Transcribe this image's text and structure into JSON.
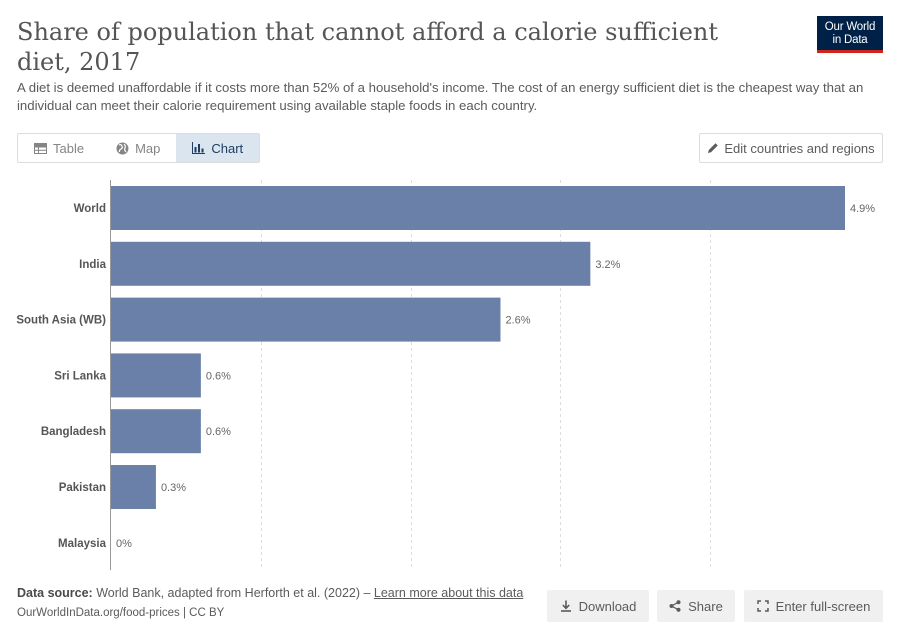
{
  "header": {
    "title": "Share of population that cannot afford a calorie sufficient diet, 2017",
    "subtitle": "A diet is deemed unaffordable if it costs more than 52% of a household's income. The cost of an energy sufficient diet is the cheapest way that an individual can meet their calorie requirement using available staple foods in each country.",
    "logo_line1": "Our World",
    "logo_line2": "in Data"
  },
  "tabs": [
    {
      "label": "Table",
      "icon": "table-icon"
    },
    {
      "label": "Map",
      "icon": "globe-icon"
    },
    {
      "label": "Chart",
      "icon": "chart-icon",
      "active": true
    }
  ],
  "edit_button_label": "Edit countries and regions",
  "chart_data": {
    "type": "bar",
    "orientation": "horizontal",
    "categories": [
      "World",
      "India",
      "South Asia (WB)",
      "Sri Lanka",
      "Bangladesh",
      "Pakistan",
      "Malaysia"
    ],
    "values": [
      4.9,
      3.2,
      2.6,
      0.6,
      0.6,
      0.3,
      0
    ],
    "value_labels": [
      "4.9%",
      "3.2%",
      "2.6%",
      "0.6%",
      "0.6%",
      "0.3%",
      "0%"
    ],
    "xlim": [
      0,
      4.9
    ],
    "gridlines": [
      1,
      2,
      3,
      4
    ],
    "grid": true,
    "bar_color": "#6a80a9"
  },
  "footer": {
    "source_label": "Data source:",
    "source_text": "World Bank, adapted from Herforth et al. (2022) – ",
    "learn_more": "Learn more about this data",
    "url_text": "OurWorldInData.org/food-prices | CC BY",
    "download_label": "Download",
    "share_label": "Share",
    "fullscreen_label": "Enter full-screen"
  }
}
